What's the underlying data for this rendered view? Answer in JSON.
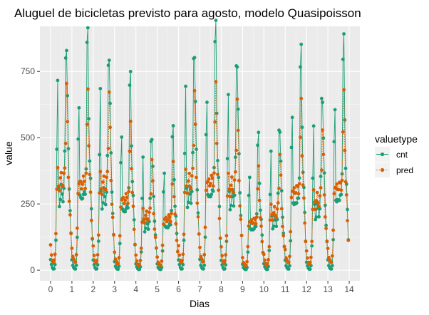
{
  "chart_data": {
    "type": "line",
    "title": "Aluguel de bicicletas previsto para agosto, modelo Quasipoisson",
    "xlabel": "Dias",
    "ylabel": "value",
    "xlim": [
      -0.5,
      14.5
    ],
    "ylim": [
      -40,
      920
    ],
    "x_ticks": [
      0,
      1,
      2,
      3,
      4,
      5,
      6,
      7,
      8,
      9,
      10,
      11,
      12,
      13,
      14
    ],
    "y_ticks": [
      0,
      250,
      500,
      750
    ],
    "grid": true,
    "legend": {
      "title": "valuetype",
      "position": "right"
    },
    "point_every_hours": 1,
    "days": 14,
    "series": [
      {
        "name": "cnt",
        "color": "#1b9e77",
        "line_style": "solid",
        "daily_profile": [
          [
            0,
            40
          ],
          [
            1,
            20
          ],
          [
            2,
            10
          ],
          [
            3,
            5
          ],
          [
            4,
            5
          ],
          [
            5,
            20
          ],
          [
            6,
            120
          ],
          [
            7,
            480
          ],
          [
            8,
            670
          ],
          [
            9,
            300
          ],
          [
            10,
            260
          ],
          [
            11,
            270
          ],
          [
            12,
            300
          ],
          [
            13,
            290
          ],
          [
            14,
            280
          ],
          [
            15,
            300
          ],
          [
            16,
            420
          ],
          [
            17,
            840
          ],
          [
            18,
            880
          ],
          [
            19,
            620
          ],
          [
            20,
            440
          ],
          [
            21,
            330
          ],
          [
            22,
            230
          ],
          [
            23,
            130
          ]
        ]
      },
      {
        "name": "pred",
        "color": "#d95f02",
        "line_style": "dotted",
        "daily_profile": [
          [
            0,
            90
          ],
          [
            1,
            55
          ],
          [
            2,
            40
          ],
          [
            3,
            30
          ],
          [
            4,
            35
          ],
          [
            5,
            60
          ],
          [
            6,
            150
          ],
          [
            7,
            300
          ],
          [
            8,
            360
          ],
          [
            9,
            330
          ],
          [
            10,
            320
          ],
          [
            11,
            330
          ],
          [
            12,
            350
          ],
          [
            13,
            340
          ],
          [
            14,
            330
          ],
          [
            15,
            340
          ],
          [
            16,
            380
          ],
          [
            17,
            520
          ],
          [
            18,
            700
          ],
          [
            19,
            520
          ],
          [
            20,
            360
          ],
          [
            21,
            280
          ],
          [
            22,
            200
          ],
          [
            23,
            130
          ]
        ]
      }
    ],
    "daily_scale": [
      1.0,
      0.98,
      0.96,
      0.8,
      0.6,
      0.58,
      0.98,
      1.0,
      0.94,
      0.55,
      0.64,
      0.9,
      0.78,
      0.94
    ]
  }
}
